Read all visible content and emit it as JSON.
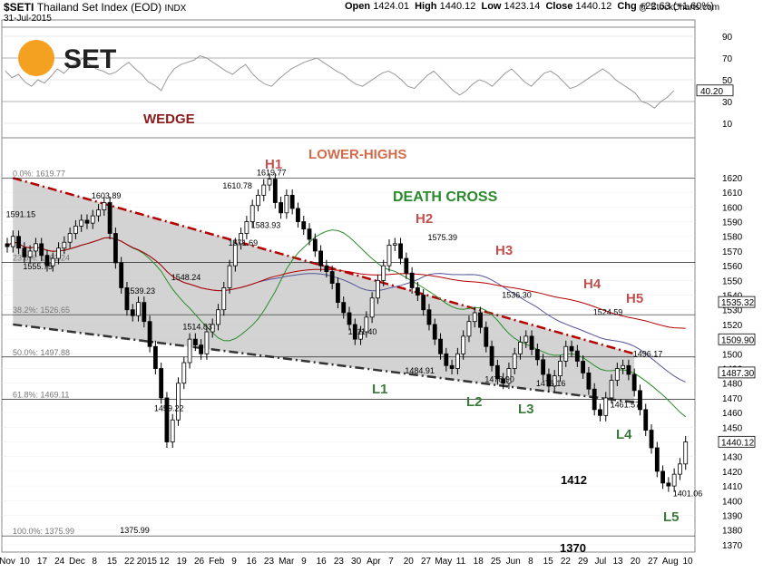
{
  "header": {
    "symbol": "$SETI",
    "name": "Thailand Set Index (EOD)",
    "exchange": "INDX",
    "date": "31-Jul-2015",
    "open_label": "Open",
    "open": "1424.01",
    "high_label": "High",
    "high": "1440.12",
    "low_label": "Low",
    "low": "1423.14",
    "close_label": "Close",
    "close": "1440.12",
    "chg_label": "Chg",
    "chg": "+22.63 (+1.60%)",
    "credit": "@ StockCharts.com"
  },
  "logo_text": "SET",
  "colors": {
    "up": "#ffffff",
    "down": "#000000",
    "wedge": "#c8c8c8",
    "red": "#b40000",
    "green": "#2a8a2a",
    "darkred": "#8b1a1a",
    "orange": "#d26b4a"
  },
  "rsi": {
    "ticks": [
      "90",
      "70",
      "50",
      "30",
      "10"
    ],
    "tick_values": [
      90,
      70,
      50,
      30,
      10
    ],
    "last_value": "40.20",
    "last": 40.2,
    "values": [
      58,
      52,
      55,
      48,
      44,
      50,
      47,
      53,
      60,
      56,
      62,
      66,
      70,
      64,
      60,
      58,
      55,
      57,
      62,
      66,
      60,
      55,
      48,
      45,
      40,
      52,
      60,
      64,
      66,
      68,
      72,
      70,
      66,
      62,
      58,
      55,
      60,
      64,
      56,
      50,
      46,
      44,
      50,
      55,
      60,
      63,
      66,
      68,
      70,
      66,
      62,
      58,
      55,
      50,
      46,
      44,
      48,
      52,
      56,
      58,
      55,
      50,
      44,
      42,
      48,
      54,
      58,
      52,
      46,
      40,
      36,
      40,
      46,
      50,
      48,
      44,
      50,
      56,
      60,
      54,
      48,
      44,
      50,
      56,
      58,
      54,
      48,
      42,
      44,
      48,
      52,
      56,
      60,
      56,
      50,
      46,
      42,
      38,
      30,
      28,
      24,
      30,
      34,
      40
    ]
  },
  "chart_data": {
    "type": "candlestick",
    "title": "$SETI Thailand Set Index (EOD) INDX",
    "ylim": [
      1365,
      1628
    ],
    "y_ticks": [
      1370,
      1380,
      1390,
      1400,
      1410,
      1420,
      1430,
      1440,
      1450,
      1460,
      1470,
      1480,
      1490,
      1500,
      1510,
      1520,
      1530,
      1540,
      1550,
      1560,
      1570,
      1580,
      1590,
      1600,
      1610,
      1620
    ],
    "x_labels": [
      "Nov",
      "10",
      "17",
      "24",
      "Dec",
      "8",
      "15",
      "22",
      "2015",
      "12",
      "19",
      "26",
      "Feb",
      "9",
      "16",
      "23",
      "Mar",
      "9",
      "16",
      "23",
      "30",
      "Apr",
      "7",
      "20",
      "27",
      "May",
      "11",
      "18",
      "25",
      "Jun",
      "8",
      "15",
      "22",
      "29",
      "Jul",
      "13",
      "20",
      "27",
      "Aug",
      "10"
    ],
    "closes": [
      1573,
      1580,
      1572,
      1566,
      1570,
      1575,
      1567,
      1560,
      1565,
      1572,
      1576,
      1582,
      1587,
      1591,
      1589,
      1594,
      1598,
      1603,
      1582,
      1562,
      1545,
      1530,
      1526,
      1535,
      1522,
      1505,
      1490,
      1470,
      1440,
      1455,
      1480,
      1494,
      1510,
      1506,
      1500,
      1515,
      1520,
      1530,
      1545,
      1560,
      1575,
      1582,
      1590,
      1601,
      1608,
      1615,
      1619,
      1603,
      1596,
      1608,
      1599,
      1590,
      1585,
      1578,
      1570,
      1560,
      1556,
      1548,
      1535,
      1528,
      1520,
      1510,
      1515,
      1525,
      1538,
      1550,
      1560,
      1574,
      1575,
      1565,
      1555,
      1545,
      1540,
      1530,
      1520,
      1510,
      1500,
      1492,
      1490,
      1500,
      1512,
      1522,
      1528,
      1518,
      1505,
      1492,
      1483,
      1480,
      1490,
      1500,
      1508,
      1512,
      1503,
      1496,
      1486,
      1478,
      1485,
      1495,
      1505,
      1502,
      1495,
      1487,
      1476,
      1462,
      1458,
      1470,
      1482,
      1490,
      1492,
      1486,
      1475,
      1462,
      1448,
      1436,
      1420,
      1412,
      1410,
      1418,
      1425,
      1440
    ],
    "wedge_upper": [
      [
        1,
        1619.77
      ],
      [
        110,
        1500
      ]
    ],
    "wedge_lower": [
      [
        1,
        1520
      ],
      [
        110,
        1467
      ]
    ],
    "level_lines": [
      1619.77,
      1562.24,
      1526.65,
      1497.88,
      1469.11,
      1375.99
    ],
    "fib_levels": [
      {
        "label": "0.0%: 1619.77",
        "value": 1619.77
      },
      {
        "label": "23.6%: 1562.24",
        "value": 1562.24
      },
      {
        "label": "38.2%: 1526.65",
        "value": 1526.65
      },
      {
        "label": "50.0%: 1497.88",
        "value": 1497.88
      },
      {
        "label": "61.8%: 1469.11",
        "value": 1469.11
      },
      {
        "label": "100.0%: 1375.99",
        "value": 1375.99
      }
    ],
    "price_labels": [
      {
        "text": "1591.15",
        "x": 2,
        "y": 1591.15
      },
      {
        "text": "1555.75",
        "x": 5,
        "y": 1555.75
      },
      {
        "text": "1603.89",
        "x": 17,
        "y": 1603.89
      },
      {
        "text": "1539.23",
        "x": 23,
        "y": 1539.23
      },
      {
        "text": "1548.24",
        "x": 31,
        "y": 1548.24
      },
      {
        "text": "1514.83",
        "x": 33,
        "y": 1514.83
      },
      {
        "text": "1459.22",
        "x": 28,
        "y": 1459.22
      },
      {
        "text": "1375.99",
        "x": 22,
        "y": 1375.99
      },
      {
        "text": "1610.78",
        "x": 40,
        "y": 1610.78
      },
      {
        "text": "1619.77",
        "x": 46,
        "y": 1619.77
      },
      {
        "text": "1583.93",
        "x": 45,
        "y": 1583.93
      },
      {
        "text": "1571.69",
        "x": 41,
        "y": 1571.69
      },
      {
        "text": "1575.39",
        "x": 76,
        "y": 1575.39
      },
      {
        "text": "1511.40",
        "x": 62,
        "y": 1511.4
      },
      {
        "text": "1484.91",
        "x": 72,
        "y": 1484.91
      },
      {
        "text": "1536.30",
        "x": 89,
        "y": 1536.3
      },
      {
        "text": "1478.90",
        "x": 86,
        "y": 1478.9
      },
      {
        "text": "1476.16",
        "x": 95,
        "y": 1476.16
      },
      {
        "text": "1524.59",
        "x": 105,
        "y": 1524.59
      },
      {
        "text": "1496.17",
        "x": 112,
        "y": 1496.17
      },
      {
        "text": "1461.57",
        "x": 108,
        "y": 1461.57
      },
      {
        "text": "1401.06",
        "x": 119,
        "y": 1401.06
      }
    ],
    "right_labels": [
      {
        "text": "1535.32",
        "value": 1535.32,
        "bg": "#ffffff",
        "color": "#000000"
      },
      {
        "text": "1509.90",
        "value": 1509.9,
        "bg": "#ffffff",
        "color": "#000000"
      },
      {
        "text": "1487.30",
        "value": 1487.3,
        "bg": "#ffffff",
        "color": "#000000"
      },
      {
        "text": "1440.12",
        "value": 1440.12,
        "bg": "#ffffff",
        "color": "#000000"
      }
    ],
    "annotations": [
      {
        "text": "WEDGE",
        "color": "#8b1a1a"
      },
      {
        "text": "LOWER-HIGHS",
        "color": "#d26b4a"
      },
      {
        "text": "DEATH CROSS",
        "color": "#2a8a2a"
      },
      {
        "text": "H1",
        "color": "#c0504d"
      },
      {
        "text": "H2",
        "color": "#c0504d"
      },
      {
        "text": "H3",
        "color": "#c0504d"
      },
      {
        "text": "H4",
        "color": "#c0504d"
      },
      {
        "text": "H5",
        "color": "#c0504d"
      },
      {
        "text": "L1",
        "color": "#3b7a3b"
      },
      {
        "text": "L2",
        "color": "#3b7a3b"
      },
      {
        "text": "L3",
        "color": "#3b7a3b"
      },
      {
        "text": "L4",
        "color": "#3b7a3b"
      },
      {
        "text": "L5",
        "color": "#3b7a3b"
      },
      {
        "text": "1412",
        "color": "#000000"
      },
      {
        "text": "1370",
        "color": "#000000"
      }
    ]
  }
}
